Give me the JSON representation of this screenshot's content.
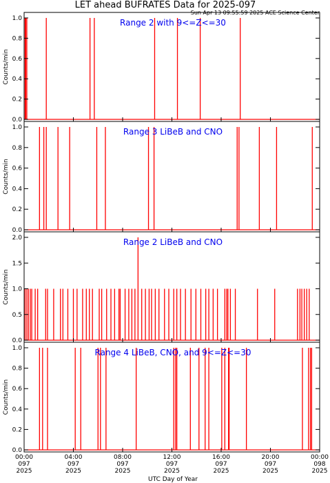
{
  "figure": {
    "title": "LET ahead BUFRATES Data for 2025-097",
    "timestamp": "Sun Apr 13 09:55:59 2025 ACE Science Center",
    "xlabel": "UTC Day of Year",
    "series_color": "#ff0000",
    "annotation_color": "#0000ee"
  },
  "chart_data": [
    {
      "type": "line",
      "annotation": "Range 2 with 9<=Z<=30",
      "ylabel": "Counts/min",
      "ylim": [
        0,
        1.0
      ],
      "yticks": [
        "0.0",
        "0.2",
        "0.4",
        "0.6",
        "0.8",
        "1.0"
      ],
      "xlim_hours": [
        0,
        24
      ],
      "baseline": 0,
      "spikes": [
        {
          "t": 0.08,
          "v": 1.0
        },
        {
          "t": 0.13,
          "v": 1.0
        },
        {
          "t": 0.22,
          "v": 1.0
        },
        {
          "t": 1.8,
          "v": 1.0
        },
        {
          "t": 5.35,
          "v": 1.0
        },
        {
          "t": 5.7,
          "v": 1.0
        },
        {
          "t": 10.6,
          "v": 1.0
        },
        {
          "t": 12.45,
          "v": 1.0
        },
        {
          "t": 14.3,
          "v": 1.0
        },
        {
          "t": 17.55,
          "v": 1.0
        }
      ]
    },
    {
      "type": "line",
      "annotation": "Range 3 LiBeB and CNO",
      "ylabel": "Counts/min",
      "ylim": [
        0,
        1.0
      ],
      "yticks": [
        "0.0",
        "0.2",
        "0.4",
        "0.6",
        "0.8",
        "1.0"
      ],
      "xlim_hours": [
        0,
        24
      ],
      "baseline": 0,
      "spikes": [
        {
          "t": 1.25,
          "v": 1.0
        },
        {
          "t": 1.6,
          "v": 1.0
        },
        {
          "t": 1.8,
          "v": 1.0
        },
        {
          "t": 2.75,
          "v": 1.0
        },
        {
          "t": 3.7,
          "v": 1.0
        },
        {
          "t": 5.9,
          "v": 1.0
        },
        {
          "t": 6.6,
          "v": 1.0
        },
        {
          "t": 10.1,
          "v": 1.0
        },
        {
          "t": 10.55,
          "v": 1.0
        },
        {
          "t": 17.3,
          "v": 1.0
        },
        {
          "t": 17.45,
          "v": 1.0
        },
        {
          "t": 19.1,
          "v": 1.0
        },
        {
          "t": 20.5,
          "v": 1.0
        },
        {
          "t": 23.4,
          "v": 1.0
        }
      ]
    },
    {
      "type": "line",
      "annotation": "Range 2 LiBeB and CNO",
      "ylabel": "Counts/min",
      "ylim": [
        0,
        2.0
      ],
      "yticks": [
        "0.0",
        "0.5",
        "1.0",
        "1.5",
        "2.0"
      ],
      "xlim_hours": [
        0,
        24
      ],
      "baseline": 0,
      "spikes": [
        {
          "t": 0.08,
          "v": 1.0
        },
        {
          "t": 0.22,
          "v": 1.0
        },
        {
          "t": 0.35,
          "v": 1.0
        },
        {
          "t": 0.5,
          "v": 1.0
        },
        {
          "t": 0.62,
          "v": 1.0
        },
        {
          "t": 0.9,
          "v": 1.0
        },
        {
          "t": 1.1,
          "v": 1.0
        },
        {
          "t": 1.75,
          "v": 1.0
        },
        {
          "t": 1.9,
          "v": 1.0
        },
        {
          "t": 2.4,
          "v": 1.0
        },
        {
          "t": 2.95,
          "v": 1.0
        },
        {
          "t": 3.15,
          "v": 1.0
        },
        {
          "t": 3.55,
          "v": 1.0
        },
        {
          "t": 4.0,
          "v": 1.0
        },
        {
          "t": 4.3,
          "v": 1.0
        },
        {
          "t": 4.75,
          "v": 1.0
        },
        {
          "t": 5.05,
          "v": 1.0
        },
        {
          "t": 5.3,
          "v": 1.0
        },
        {
          "t": 5.55,
          "v": 1.0
        },
        {
          "t": 6.1,
          "v": 1.0
        },
        {
          "t": 6.3,
          "v": 1.0
        },
        {
          "t": 6.7,
          "v": 1.0
        },
        {
          "t": 7.05,
          "v": 1.0
        },
        {
          "t": 7.35,
          "v": 1.0
        },
        {
          "t": 7.7,
          "v": 1.0
        },
        {
          "t": 7.8,
          "v": 1.0
        },
        {
          "t": 8.2,
          "v": 1.0
        },
        {
          "t": 8.5,
          "v": 1.0
        },
        {
          "t": 8.75,
          "v": 1.0
        },
        {
          "t": 9.0,
          "v": 1.0
        },
        {
          "t": 9.25,
          "v": 2.0
        },
        {
          "t": 9.55,
          "v": 1.0
        },
        {
          "t": 9.85,
          "v": 1.0
        },
        {
          "t": 10.15,
          "v": 1.0
        },
        {
          "t": 10.35,
          "v": 1.0
        },
        {
          "t": 10.65,
          "v": 1.0
        },
        {
          "t": 10.95,
          "v": 1.0
        },
        {
          "t": 11.4,
          "v": 1.0
        },
        {
          "t": 11.75,
          "v": 1.0
        },
        {
          "t": 12.15,
          "v": 1.0
        },
        {
          "t": 12.4,
          "v": 1.0
        },
        {
          "t": 12.7,
          "v": 1.0
        },
        {
          "t": 13.1,
          "v": 1.0
        },
        {
          "t": 13.55,
          "v": 1.0
        },
        {
          "t": 13.95,
          "v": 1.0
        },
        {
          "t": 14.35,
          "v": 1.0
        },
        {
          "t": 14.75,
          "v": 1.0
        },
        {
          "t": 15.0,
          "v": 1.0
        },
        {
          "t": 15.35,
          "v": 1.0
        },
        {
          "t": 15.7,
          "v": 1.0
        },
        {
          "t": 16.3,
          "v": 1.0
        },
        {
          "t": 16.45,
          "v": 1.0
        },
        {
          "t": 16.55,
          "v": 1.0
        },
        {
          "t": 16.75,
          "v": 1.0
        },
        {
          "t": 17.15,
          "v": 1.0
        },
        {
          "t": 18.95,
          "v": 1.0
        },
        {
          "t": 20.35,
          "v": 1.0
        },
        {
          "t": 22.2,
          "v": 1.0
        },
        {
          "t": 22.4,
          "v": 1.0
        },
        {
          "t": 22.55,
          "v": 1.0
        },
        {
          "t": 22.75,
          "v": 1.0
        },
        {
          "t": 22.95,
          "v": 1.0
        },
        {
          "t": 23.15,
          "v": 1.0
        }
      ]
    },
    {
      "type": "line",
      "annotation": "Range 4 LiBeB, CNO, and 9<=Z<=30",
      "ylabel": "Counts/min",
      "ylim": [
        0,
        1.0
      ],
      "yticks": [
        "0.0",
        "0.2",
        "0.4",
        "0.6",
        "0.8",
        "1.0"
      ],
      "xlim_hours": [
        0,
        24
      ],
      "baseline": 0,
      "spikes": [
        {
          "t": 1.25,
          "v": 1.0
        },
        {
          "t": 1.5,
          "v": 1.0
        },
        {
          "t": 1.9,
          "v": 1.0
        },
        {
          "t": 4.15,
          "v": 1.0
        },
        {
          "t": 4.6,
          "v": 1.0
        },
        {
          "t": 6.0,
          "v": 1.0
        },
        {
          "t": 6.2,
          "v": 1.0
        },
        {
          "t": 6.65,
          "v": 1.0
        },
        {
          "t": 9.1,
          "v": 1.0
        },
        {
          "t": 12.15,
          "v": 1.0
        },
        {
          "t": 12.3,
          "v": 1.0
        },
        {
          "t": 12.4,
          "v": 1.0
        },
        {
          "t": 13.5,
          "v": 1.0
        },
        {
          "t": 14.2,
          "v": 1.0
        },
        {
          "t": 14.7,
          "v": 1.0
        },
        {
          "t": 15.0,
          "v": 1.0
        },
        {
          "t": 16.05,
          "v": 1.0
        },
        {
          "t": 16.3,
          "v": 1.0
        },
        {
          "t": 16.6,
          "v": 1.0
        },
        {
          "t": 16.65,
          "v": 1.0
        },
        {
          "t": 18.05,
          "v": 1.0
        },
        {
          "t": 22.6,
          "v": 1.0
        },
        {
          "t": 23.1,
          "v": 1.0
        },
        {
          "t": 23.25,
          "v": 1.0
        },
        {
          "t": 23.35,
          "v": 1.0
        }
      ]
    }
  ],
  "x_axis": {
    "ticks": [
      {
        "hour": 0,
        "lines": [
          "00:00",
          "097",
          "2025"
        ]
      },
      {
        "hour": 4,
        "lines": [
          "04:00",
          "097",
          "2025"
        ]
      },
      {
        "hour": 8,
        "lines": [
          "08:00",
          "097",
          "2025"
        ]
      },
      {
        "hour": 12,
        "lines": [
          "12:00",
          "097",
          "2025"
        ]
      },
      {
        "hour": 16,
        "lines": [
          "16:00",
          "097",
          "2025"
        ]
      },
      {
        "hour": 20,
        "lines": [
          "20:00",
          "097",
          "2025"
        ]
      },
      {
        "hour": 24,
        "lines": [
          "00:00",
          "098",
          "2025"
        ]
      }
    ]
  }
}
